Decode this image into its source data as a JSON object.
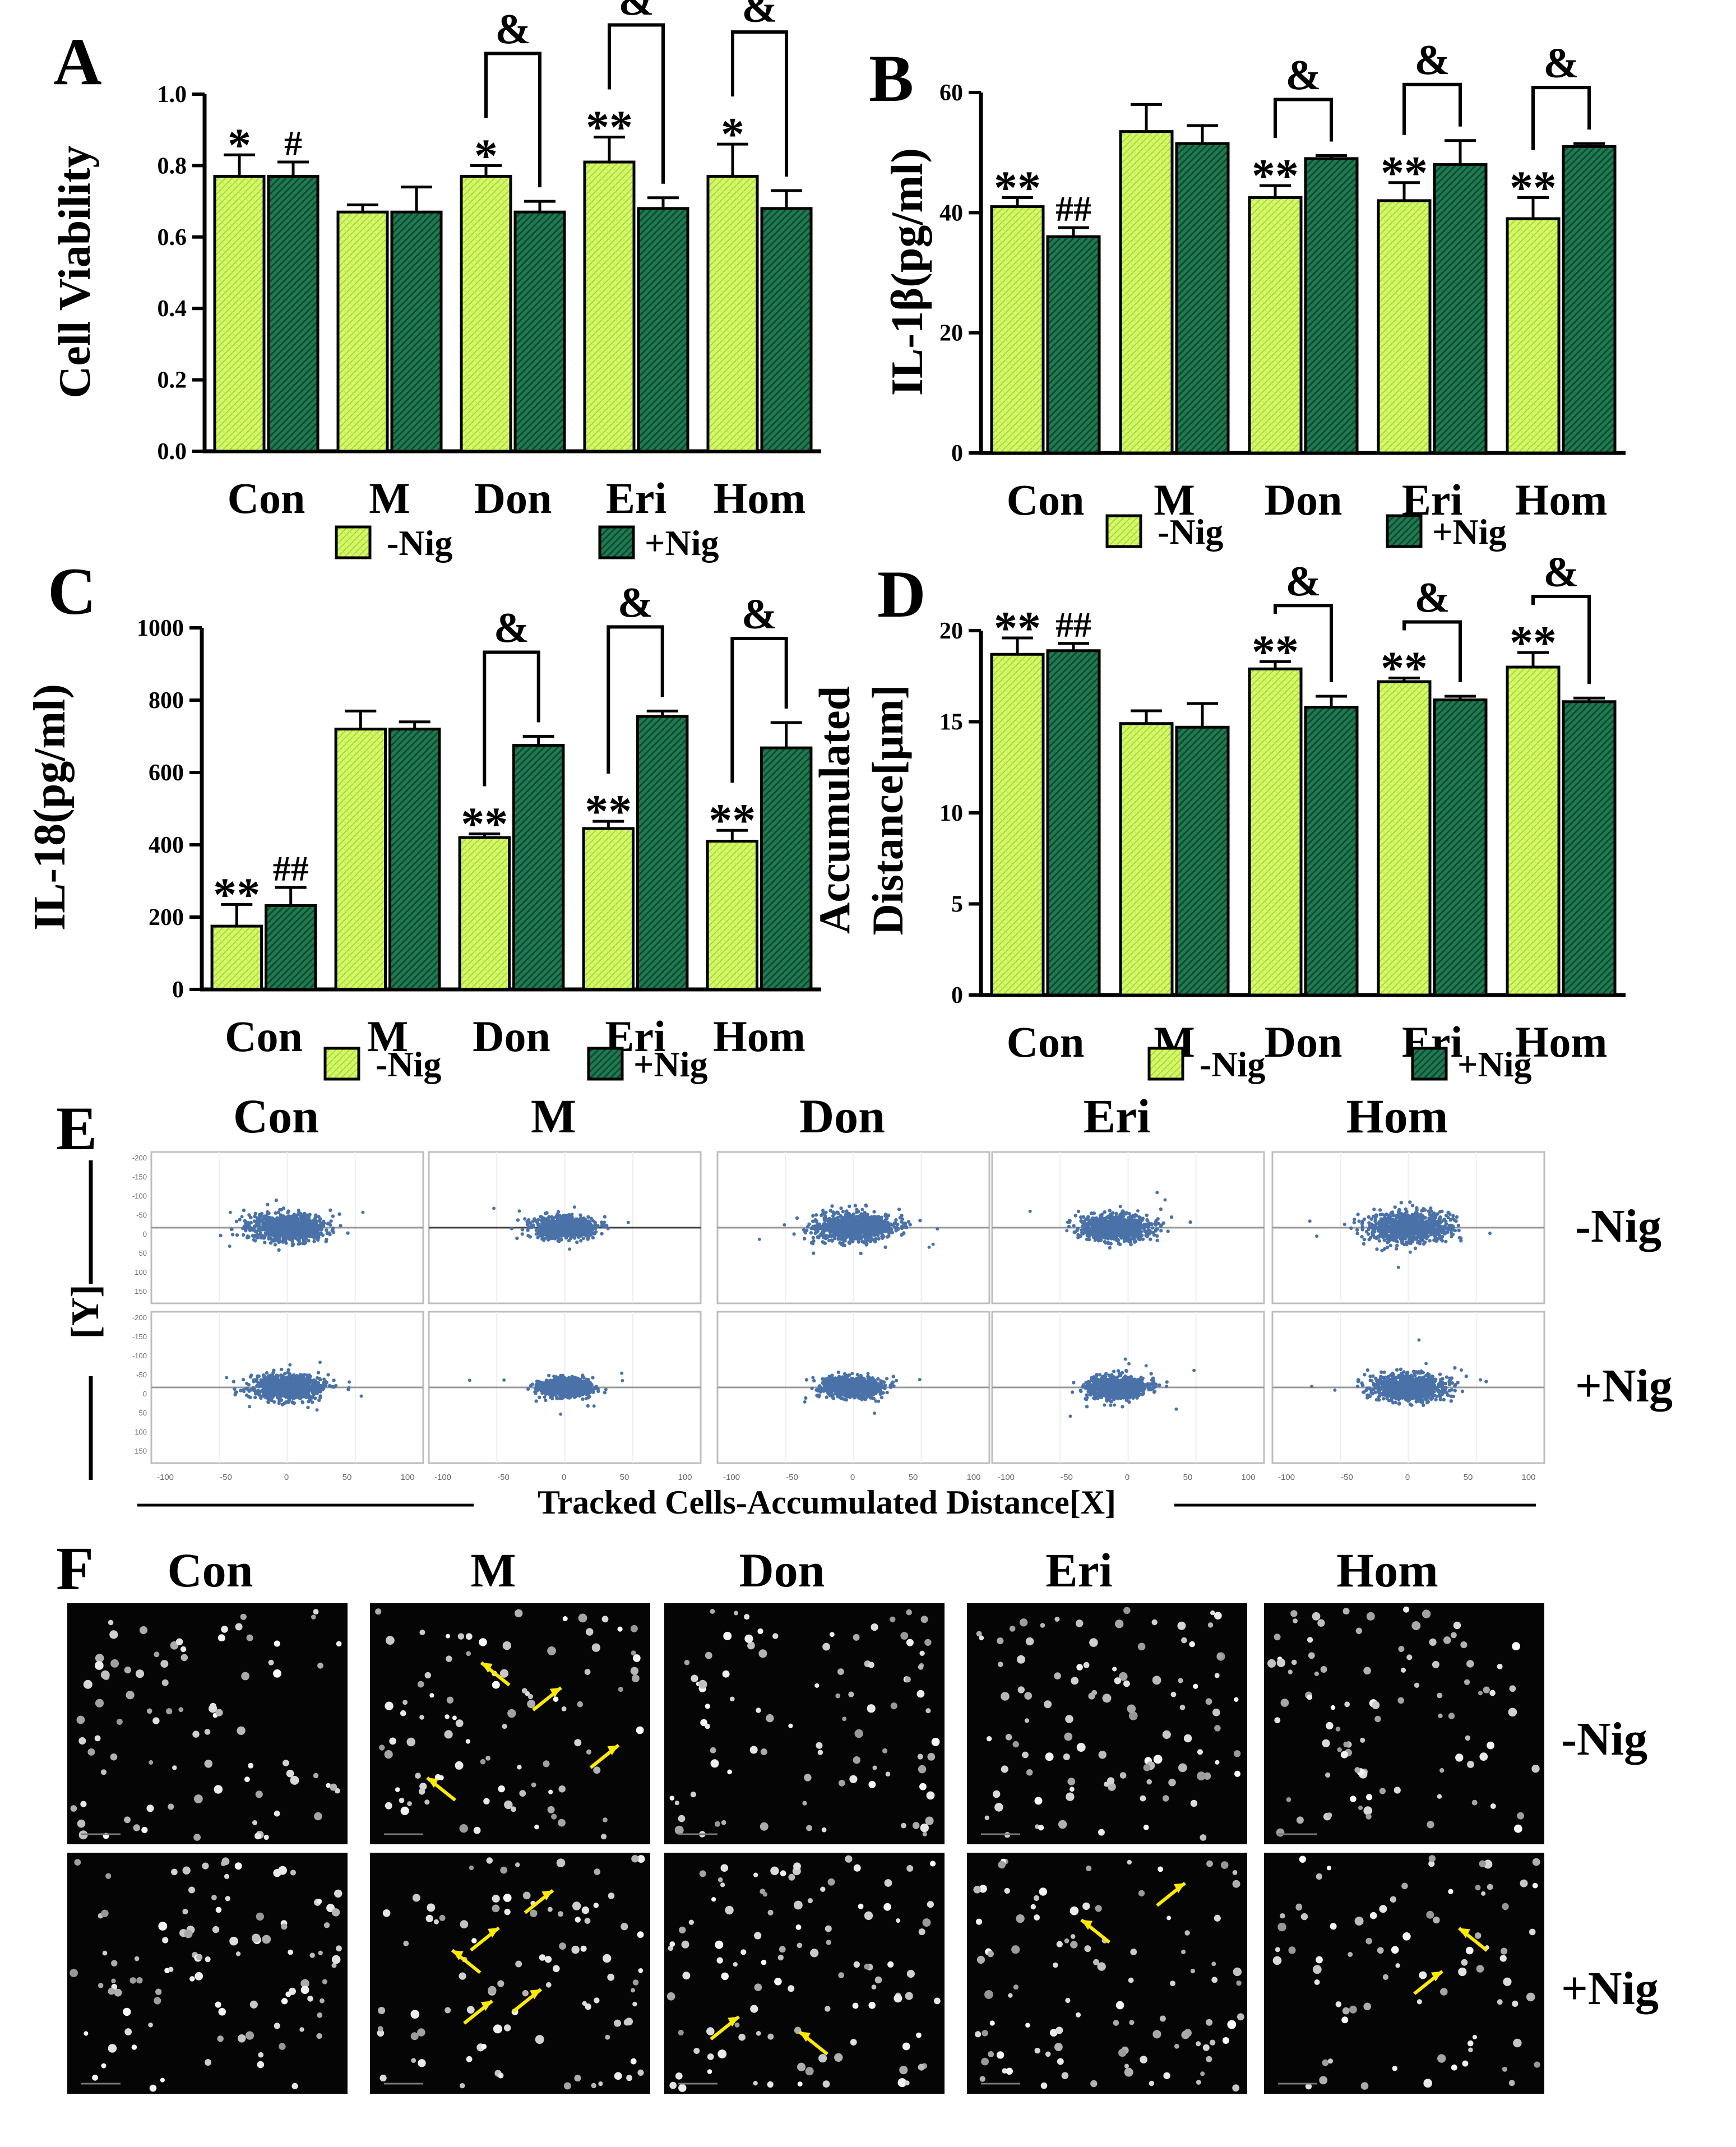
{
  "colors": {
    "minus_nig": "#d8f86e",
    "plus_nig": "#1f7a52",
    "scatter_points": "#4a72a8",
    "arrow": "#ffea00",
    "micrograph_bg": "#050505"
  },
  "legend": {
    "minus": "-Nig",
    "plus": "+Nig"
  },
  "chart_data": [
    {
      "panel": "A",
      "type": "bar",
      "ylabel": "Cell Viability",
      "categories": [
        "Con",
        "M",
        "Don",
        "Eri",
        "Hom"
      ],
      "ylim": [
        0,
        1.0
      ],
      "yticks": [
        "0.0",
        "0.2",
        "0.4",
        "0.6",
        "0.8",
        "1.0"
      ],
      "series": [
        {
          "name": "-Nig",
          "values": [
            0.77,
            0.67,
            0.77,
            0.81,
            0.77
          ],
          "errors": [
            0.06,
            0.02,
            0.03,
            0.07,
            0.09
          ]
        },
        {
          "name": "+Nig",
          "values": [
            0.77,
            0.67,
            0.67,
            0.68,
            0.68
          ],
          "errors": [
            0.04,
            0.07,
            0.03,
            0.03,
            0.05
          ]
        }
      ],
      "marks": [
        [
          "*",
          "#"
        ],
        [
          "",
          ""
        ],
        [
          "*",
          ""
        ],
        [
          "**",
          ""
        ],
        [
          "*",
          ""
        ]
      ],
      "brackets": [
        false,
        false,
        true,
        true,
        true
      ],
      "bracket_label": "&"
    },
    {
      "panel": "B",
      "type": "bar",
      "ylabel": "IL-1β(pg/ml)",
      "categories": [
        "Con",
        "M",
        "Don",
        "Eri",
        "Hom"
      ],
      "ylim": [
        0,
        60
      ],
      "yticks": [
        "0",
        "20",
        "40",
        "60"
      ],
      "series": [
        {
          "name": "-Nig",
          "values": [
            41,
            53.5,
            42.5,
            42,
            39
          ],
          "errors": [
            1.5,
            4.5,
            2,
            3,
            3.5
          ]
        },
        {
          "name": "+Nig",
          "values": [
            36,
            51.5,
            49,
            48,
            51
          ],
          "errors": [
            1.5,
            3,
            0.5,
            4,
            0.5
          ]
        }
      ],
      "marks": [
        [
          "**",
          "##"
        ],
        [
          "",
          ""
        ],
        [
          "**",
          ""
        ],
        [
          "**",
          ""
        ],
        [
          "**",
          ""
        ]
      ],
      "brackets": [
        false,
        false,
        true,
        true,
        true
      ],
      "bracket_label": "&"
    },
    {
      "panel": "C",
      "type": "bar",
      "ylabel": "IL-18(pg/ml)",
      "categories": [
        "Con",
        "M",
        "Don",
        "Eri",
        "Hom"
      ],
      "ylim": [
        0,
        1000
      ],
      "yticks": [
        "0",
        "200",
        "400",
        "600",
        "800",
        "1000"
      ],
      "series": [
        {
          "name": "-Nig",
          "values": [
            175,
            720,
            420,
            445,
            410
          ],
          "errors": [
            60,
            50,
            10,
            20,
            30
          ]
        },
        {
          "name": "+Nig",
          "values": [
            232,
            720,
            675,
            755,
            668
          ],
          "errors": [
            50,
            20,
            25,
            15,
            70
          ]
        }
      ],
      "marks": [
        [
          "**",
          "##"
        ],
        [
          "",
          ""
        ],
        [
          "**",
          ""
        ],
        [
          "**",
          ""
        ],
        [
          "**",
          ""
        ]
      ],
      "brackets": [
        false,
        false,
        true,
        true,
        true
      ],
      "bracket_label": "&"
    },
    {
      "panel": "D",
      "type": "bar",
      "ylabel": [
        "Accumulated",
        "Distance[μm]"
      ],
      "categories": [
        "Con",
        "M",
        "Don",
        "Eri",
        "Hom"
      ],
      "ylim": [
        0,
        20
      ],
      "yticks": [
        "0",
        "5",
        "10",
        "15",
        "20"
      ],
      "series": [
        {
          "name": "-Nig",
          "values": [
            18.7,
            14.9,
            17.9,
            17.2,
            18.0
          ],
          "errors": [
            0.9,
            0.7,
            0.4,
            0.2,
            0.8
          ]
        },
        {
          "name": "+Nig",
          "values": [
            18.9,
            14.7,
            15.8,
            16.2,
            16.1
          ],
          "errors": [
            0.4,
            1.3,
            0.6,
            0.2,
            0.2
          ]
        }
      ],
      "marks": [
        [
          "**",
          "##"
        ],
        [
          "",
          ""
        ],
        [
          "**",
          ""
        ],
        [
          "**",
          ""
        ],
        [
          "**",
          ""
        ]
      ],
      "brackets": [
        false,
        false,
        true,
        true,
        true
      ],
      "bracket_label": "&"
    }
  ],
  "panel_e": {
    "letter": "E",
    "columns": [
      "Con",
      "M",
      "Don",
      "Eri",
      "Hom"
    ],
    "rows": [
      "-Nig",
      "+Nig"
    ],
    "ylabel": "[Y]",
    "xlabel": "Tracked Cells-Accumulated Distance[X]",
    "xticks": [
      "-100",
      "-50",
      "0",
      "50",
      "100"
    ],
    "yticks": [
      "-200",
      "-150",
      "-100",
      "-50",
      "0",
      "50",
      "100",
      "150"
    ],
    "spreads": [
      [
        38,
        28,
        40,
        34,
        42
      ],
      [
        34,
        24,
        28,
        30,
        36
      ]
    ]
  },
  "panel_f": {
    "letter": "F",
    "columns": [
      "Con",
      "M",
      "Don",
      "Eri",
      "Hom"
    ],
    "rows": [
      "-Nig",
      "+Nig"
    ],
    "arrow_counts": [
      [
        0,
        4,
        0,
        0,
        0
      ],
      [
        0,
        5,
        2,
        2,
        2
      ]
    ]
  }
}
